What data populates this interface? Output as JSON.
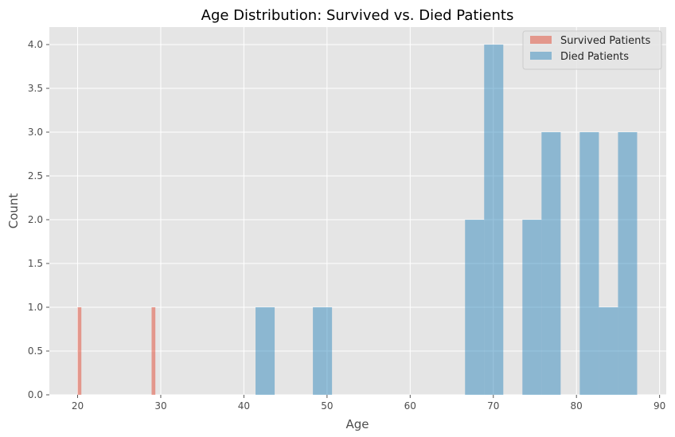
{
  "chart_data": {
    "type": "bar",
    "title": "Age Distribution: Survived vs. Died Patients",
    "xlabel": "Age",
    "ylabel": "Count",
    "xlim": [
      16.6,
      90.8
    ],
    "ylim": [
      0,
      4.2
    ],
    "x_ticks": [
      20,
      30,
      40,
      50,
      60,
      70,
      80,
      90
    ],
    "y_ticks": [
      0.0,
      0.5,
      1.0,
      1.5,
      2.0,
      2.5,
      3.0,
      3.5,
      4.0
    ],
    "grid": true,
    "legend_position": "top-right",
    "series": [
      {
        "name": "Survived Patients",
        "color": "#E24A33",
        "bins": [
          {
            "start": 20.0,
            "end": 20.45,
            "count": 1
          },
          {
            "start": 28.9,
            "end": 29.35,
            "count": 1
          }
        ]
      },
      {
        "name": "Died Patients",
        "color": "#348ABD",
        "bins": [
          {
            "start": 41.4,
            "end": 43.7,
            "count": 1
          },
          {
            "start": 48.3,
            "end": 50.6,
            "count": 1
          },
          {
            "start": 66.6,
            "end": 68.9,
            "count": 2
          },
          {
            "start": 68.9,
            "end": 71.2,
            "count": 4
          },
          {
            "start": 73.5,
            "end": 75.8,
            "count": 2
          },
          {
            "start": 75.8,
            "end": 78.1,
            "count": 3
          },
          {
            "start": 80.4,
            "end": 82.7,
            "count": 3
          },
          {
            "start": 82.7,
            "end": 85.0,
            "count": 1
          },
          {
            "start": 85.0,
            "end": 87.3,
            "count": 3
          }
        ]
      }
    ]
  }
}
